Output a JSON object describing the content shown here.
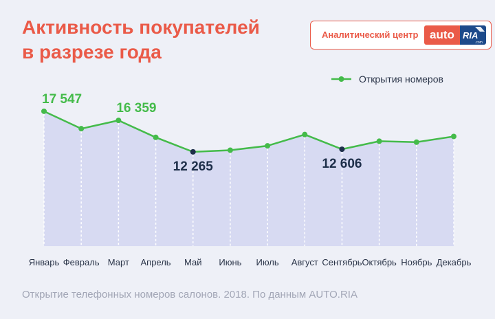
{
  "header": {
    "title_line1": "Активность покупателей",
    "title_line2": "в разрезе года"
  },
  "brand": {
    "label": "Аналитический центр",
    "logo_part1": "auto",
    "logo_part2": "RIA",
    "logo_domain": ".com"
  },
  "caption": "Открытие телефонных номеров салонов. 2018. По данным AUTO.RIA",
  "colors": {
    "accent": "#ea5a48",
    "line": "#44bb4a",
    "low_marker": "#1e2f4a",
    "area": "#d7daf2",
    "background": "#eef0f7"
  },
  "chart_data": {
    "type": "area",
    "categories": [
      "Январь",
      "Февраль",
      "Март",
      "Апрель",
      "Май",
      "Июнь",
      "Июль",
      "Август",
      "Сентябрь",
      "Октябрь",
      "Ноябрь",
      "Декабрь"
    ],
    "series": [
      {
        "name": "Открытия номеров",
        "values": [
          17547,
          15280,
          16359,
          14150,
          12265,
          12480,
          13050,
          14520,
          12606,
          13650,
          13530,
          14270
        ]
      }
    ],
    "annotations": [
      {
        "index": 0,
        "text": "17 547",
        "style": "high"
      },
      {
        "index": 2,
        "text": "16 359",
        "style": "high"
      },
      {
        "index": 4,
        "text": "12 265",
        "style": "low"
      },
      {
        "index": 8,
        "text": "12 606",
        "style": "low"
      }
    ],
    "legend_position": "top-right",
    "ylim": [
      0,
      19500
    ],
    "grid": "vertical"
  }
}
